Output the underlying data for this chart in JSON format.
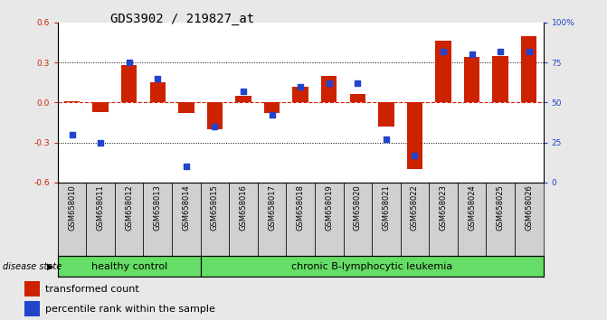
{
  "title": "GDS3902 / 219827_at",
  "samples": [
    "GSM658010",
    "GSM658011",
    "GSM658012",
    "GSM658013",
    "GSM658014",
    "GSM658015",
    "GSM658016",
    "GSM658017",
    "GSM658018",
    "GSM658019",
    "GSM658020",
    "GSM658021",
    "GSM658022",
    "GSM658023",
    "GSM658024",
    "GSM658025",
    "GSM658026"
  ],
  "red_values": [
    0.01,
    -0.07,
    0.28,
    0.15,
    -0.08,
    -0.2,
    0.05,
    -0.08,
    0.12,
    0.2,
    0.06,
    -0.18,
    -0.5,
    0.46,
    0.34,
    0.35,
    0.5
  ],
  "blue_percentiles": [
    30,
    25,
    75,
    65,
    10,
    35,
    57,
    42,
    60,
    62,
    62,
    27,
    17,
    82,
    80,
    82,
    82
  ],
  "ylim": [
    -0.6,
    0.6
  ],
  "right_ylim": [
    0,
    100
  ],
  "yticks_left": [
    -0.6,
    -0.3,
    0.0,
    0.3,
    0.6
  ],
  "yticks_right": [
    0,
    25,
    50,
    75,
    100
  ],
  "bar_color": "#cc2200",
  "dot_color": "#2244cc",
  "bar_width": 0.55,
  "disease_state_label": "disease state",
  "legend_bar_label": "transformed count",
  "legend_dot_label": "percentile rank within the sample",
  "fig_bg": "#e8e8e8",
  "plot_bg": "#ffffff",
  "tick_bg": "#d0d0d0",
  "group_bg": "#66dd66",
  "title_fontsize": 10,
  "tick_fontsize": 6.5,
  "sample_fontsize": 6,
  "group_fontsize": 8,
  "legend_fontsize": 8
}
